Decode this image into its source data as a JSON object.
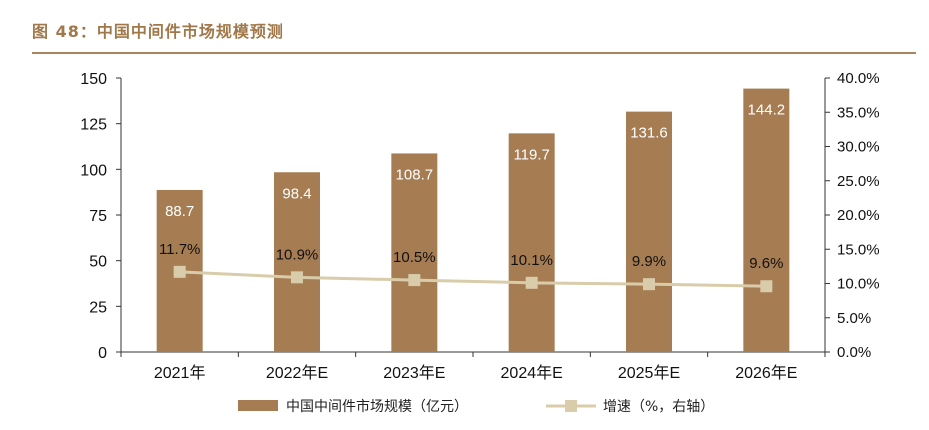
{
  "figure": {
    "title": "图 48：中国中间件市场规模预测"
  },
  "chart_data": {
    "type": "bar",
    "categories": [
      "2021年",
      "2022年E",
      "2023年E",
      "2024年E",
      "2025年E",
      "2026年E"
    ],
    "series": [
      {
        "name": "中国中间件市场规模（亿元）",
        "type": "bar",
        "axis": "left",
        "values": [
          88.7,
          98.4,
          108.7,
          119.7,
          131.6,
          144.2
        ],
        "labels": [
          "88.7",
          "98.4",
          "108.7",
          "119.7",
          "131.6",
          "144.2"
        ],
        "color": "#a67c52"
      },
      {
        "name": "增速（%，右轴）",
        "type": "line",
        "axis": "right",
        "values": [
          11.7,
          10.9,
          10.5,
          10.1,
          9.9,
          9.6
        ],
        "labels": [
          "11.7%",
          "10.9%",
          "10.5%",
          "10.1%",
          "9.9%",
          "9.6%"
        ],
        "color": "#d9ccaa"
      }
    ],
    "y_left": {
      "ylim": [
        0,
        150
      ],
      "ticks": [
        "0",
        "25",
        "50",
        "75",
        "100",
        "125",
        "150"
      ]
    },
    "y_right": {
      "ylim": [
        0,
        40
      ],
      "ticks": [
        "0.0%",
        "5.0%",
        "10.0%",
        "15.0%",
        "20.0%",
        "25.0%",
        "30.0%",
        "35.0%",
        "40.0%"
      ]
    },
    "legend": "bottom",
    "grid": false
  }
}
